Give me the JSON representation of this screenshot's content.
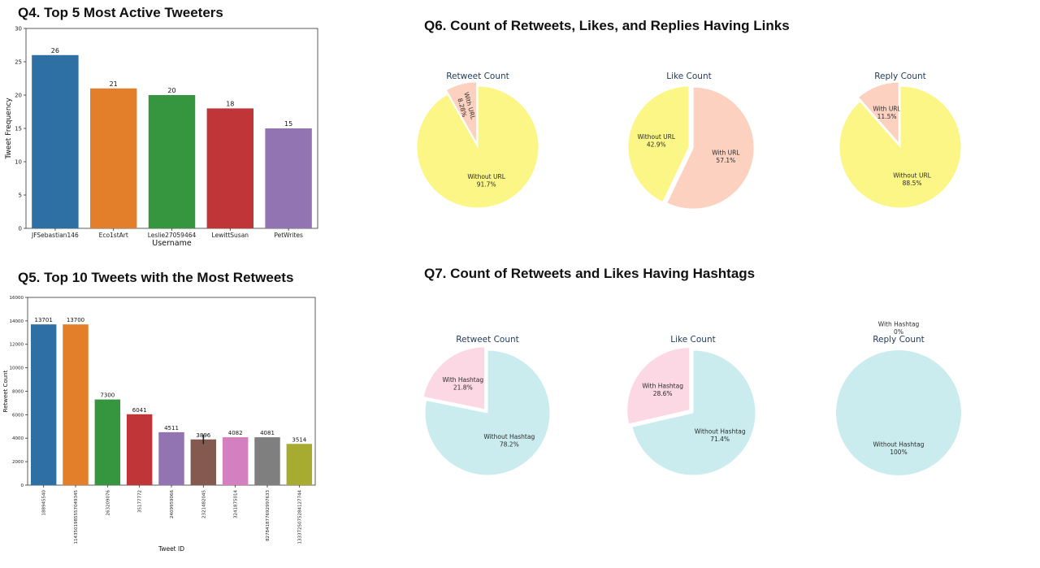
{
  "headings": {
    "q4": "Q4. Top 5 Most Active Tweeters",
    "q5": "Q5. Top 10 Tweets with the Most Retweets",
    "q6": "Q6. Count of Retweets, Likes, and Replies Having Links",
    "q7": "Q7. Count of Retweets and Likes Having Hashtags"
  },
  "chart_data": [
    {
      "id": "q4",
      "type": "bar",
      "categories": [
        "JFSebastian146",
        "Eco1stArt",
        "Leslie27059464",
        "LewittSusan",
        "PetWrites"
      ],
      "values": [
        26,
        21,
        20,
        18,
        15
      ],
      "value_labels": [
        "26",
        "21",
        "20",
        "18",
        "15"
      ],
      "colors": [
        "#2e70a3",
        "#e37f2b",
        "#35963f",
        "#c03538",
        "#9274b3"
      ],
      "xlabel": "Username",
      "ylabel": "Tweet Frequency",
      "ylim": [
        0,
        30
      ],
      "yticks": [
        0,
        5,
        10,
        15,
        20,
        25,
        30
      ],
      "grid": false
    },
    {
      "id": "q5",
      "type": "bar",
      "categories": [
        "188945540",
        "1143501985557049345",
        "263209076",
        "35177772",
        "2409959066",
        "2321482045",
        "3241875014",
        "827841877692997633",
        "1333725075284127744"
      ],
      "values": [
        13701,
        13700,
        7300,
        6041,
        4511,
        3896,
        4082,
        4081,
        3514
      ],
      "value_labels": [
        "13701",
        "13700",
        "7300",
        "6041",
        "4511",
        "3896",
        "4082",
        "4081",
        "3514"
      ],
      "colors": [
        "#2e70a3",
        "#e37f2b",
        "#35963f",
        "#c03538",
        "#9274b3",
        "#845a50",
        "#d47fbf",
        "#7f7f7f",
        "#a7ab30"
      ],
      "error_bar": {
        "category_index": 5,
        "low": 3500,
        "high": 4300
      },
      "xlabel": "Tweet ID",
      "ylabel": "Retweet Count",
      "ylim": [
        0,
        16000
      ],
      "yticks": [
        0,
        2000,
        4000,
        6000,
        8000,
        10000,
        12000,
        14000,
        16000
      ],
      "grid": false
    },
    {
      "id": "q6-retweet",
      "type": "pie",
      "title": "Retweet Count",
      "slices": [
        {
          "label": "With URL",
          "pct_label": "8.28%",
          "value": 8.28,
          "color": "#fcd1c0",
          "exploded": true
        },
        {
          "label": "Without URL",
          "pct_label": "91.7%",
          "value": 91.72,
          "color": "#fbf686",
          "exploded": false
        }
      ]
    },
    {
      "id": "q6-like",
      "type": "pie",
      "title": "Like Count",
      "slices": [
        {
          "label": "Without URL",
          "pct_label": "42.9%",
          "value": 42.9,
          "color": "#fbf686",
          "exploded": false
        },
        {
          "label": "With URL",
          "pct_label": "57.1%",
          "value": 57.1,
          "color": "#fcd1c0",
          "exploded": true
        }
      ]
    },
    {
      "id": "q6-reply",
      "type": "pie",
      "title": "Reply Count",
      "slices": [
        {
          "label": "With URL",
          "pct_label": "11.5%",
          "value": 11.5,
          "color": "#fcd1c0",
          "exploded": true
        },
        {
          "label": "Without URL",
          "pct_label": "88.5%",
          "value": 88.5,
          "color": "#fbf686",
          "exploded": false
        }
      ]
    },
    {
      "id": "q7-retweet",
      "type": "pie",
      "title": "Retweet Count",
      "slices": [
        {
          "label": "With Hashtag",
          "pct_label": "21.8%",
          "value": 21.8,
          "color": "#fcd8e4",
          "exploded": true
        },
        {
          "label": "Without Hashtag",
          "pct_label": "78.2%",
          "value": 78.2,
          "color": "#cbecee",
          "exploded": false
        }
      ]
    },
    {
      "id": "q7-like",
      "type": "pie",
      "title": "Like Count",
      "slices": [
        {
          "label": "With Hashtag",
          "pct_label": "28.6%",
          "value": 28.6,
          "color": "#fcd8e4",
          "exploded": true
        },
        {
          "label": "Without Hashtag",
          "pct_label": "71.4%",
          "value": 71.4,
          "color": "#cbecee",
          "exploded": false
        }
      ]
    },
    {
      "id": "q7-reply",
      "type": "pie",
      "title": "Reply Count",
      "slices": [
        {
          "label": "With Hashtag",
          "pct_label": "0%",
          "value": 0,
          "color": "#fcd8e4",
          "exploded": true
        },
        {
          "label": "Without Hashtag",
          "pct_label": "100%",
          "value": 100,
          "color": "#cbecee",
          "exploded": false
        }
      ]
    }
  ]
}
